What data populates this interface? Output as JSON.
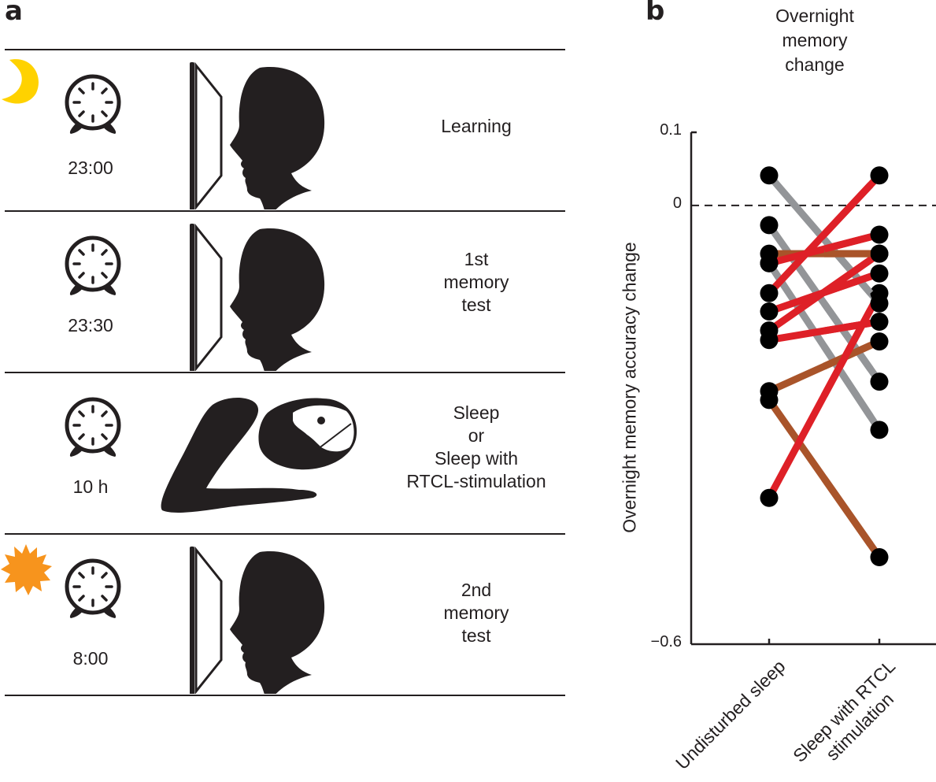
{
  "panel_a": {
    "letter": "a",
    "rows": [
      {
        "time": "23:00",
        "label_lines": [
          "Learning"
        ],
        "time_of_day_icon": "moon-icon",
        "scene": "screen-head"
      },
      {
        "time": "23:30",
        "label_lines": [
          "1st",
          "memory",
          "test"
        ],
        "time_of_day_icon": null,
        "scene": "screen-head"
      },
      {
        "time": "10 h",
        "label_lines": [
          "Sleep",
          "or",
          "Sleep with",
          "RTCL-stimulation"
        ],
        "time_of_day_icon": null,
        "scene": "sleeper"
      },
      {
        "time": "8:00",
        "label_lines": [
          "2nd",
          "memory",
          "test"
        ],
        "time_of_day_icon": "sun-icon",
        "scene": "screen-head"
      }
    ],
    "colors": {
      "moon": "#ffd200",
      "sun": "#f7941d"
    }
  },
  "panel_b": {
    "letter": "b"
  },
  "chart_data": {
    "type": "line",
    "title": "Overnight memory change",
    "title_lines": [
      "Overnight",
      "memory",
      "change"
    ],
    "xlabel": "",
    "ylabel": "Overnight memory accuracy change",
    "categories": [
      "Undisturbed sleep",
      "Sleep with RTCL stimulation"
    ],
    "category_label_lines": [
      [
        "Undisturbed sleep"
      ],
      [
        "Sleep with RTCL",
        "stimulation"
      ]
    ],
    "ylim": [
      -0.6,
      0.1
    ],
    "yticks": [
      0.1,
      0,
      -0.6
    ],
    "ytick_labels": [
      "0.1",
      "0",
      "−0.6"
    ],
    "reference_line": {
      "y": 0,
      "style": "dashed"
    },
    "grid": false,
    "series": [
      {
        "name": "participant-1",
        "group": "gray",
        "values": [
          0.041,
          -0.134
        ]
      },
      {
        "name": "participant-2",
        "group": "gray",
        "values": [
          -0.027,
          -0.241
        ]
      },
      {
        "name": "participant-3",
        "group": "gray",
        "values": [
          -0.079,
          -0.307
        ]
      },
      {
        "name": "participant-4",
        "group": "brown",
        "values": [
          -0.066,
          -0.066
        ]
      },
      {
        "name": "participant-5",
        "group": "brown",
        "values": [
          -0.254,
          -0.186
        ]
      },
      {
        "name": "participant-6",
        "group": "brown",
        "values": [
          -0.266,
          -0.481
        ]
      },
      {
        "name": "participant-7",
        "group": "red",
        "values": [
          -0.12,
          0.041
        ]
      },
      {
        "name": "participant-8",
        "group": "red",
        "values": [
          -0.079,
          -0.04
        ]
      },
      {
        "name": "participant-9",
        "group": "red",
        "values": [
          -0.145,
          -0.093
        ]
      },
      {
        "name": "participant-10",
        "group": "red",
        "values": [
          -0.171,
          -0.066
        ]
      },
      {
        "name": "participant-11",
        "group": "red",
        "values": [
          -0.184,
          -0.159
        ]
      },
      {
        "name": "participant-12",
        "group": "red",
        "values": [
          -0.4,
          -0.12
        ]
      }
    ],
    "group_colors": {
      "gray": "#939598",
      "brown": "#a9542a",
      "red": "#de2027"
    },
    "marker_color": "#000000"
  }
}
